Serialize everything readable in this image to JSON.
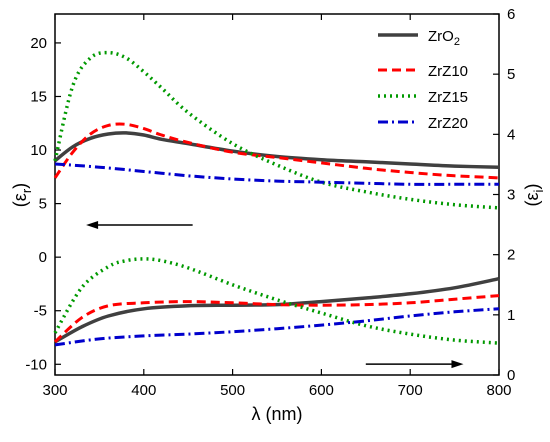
{
  "chart_data": {
    "type": "line",
    "xlabel": "λ (nm)",
    "ylabel_left_main": "(ε",
    "ylabel_left_sub": "r",
    "ylabel_left_tail": ")",
    "ylabel_right_main": "(ε",
    "ylabel_right_sub": "i",
    "ylabel_right_tail": ")",
    "xlim": [
      300,
      800
    ],
    "ylim_left": [
      -11,
      22.7
    ],
    "ylim_right": [
      0,
      6
    ],
    "x_ticks": [
      300,
      400,
      500,
      600,
      700,
      800
    ],
    "y_left_ticks": [
      -10,
      -5,
      0,
      5,
      10,
      15,
      20
    ],
    "y_right_ticks": [
      0,
      1,
      2,
      3,
      4,
      5,
      6
    ],
    "legend_position": "top-right",
    "series_styles": [
      {
        "color": "#404040",
        "dash": "",
        "width": 3.5
      },
      {
        "color": "#ff0000",
        "dash": "9,5",
        "width": 3
      },
      {
        "color": "#009900",
        "dash": "2,4",
        "width": 3.5
      },
      {
        "color": "#0000cc",
        "dash": "10,4,2,4",
        "width": 3
      }
    ],
    "legend": [
      {
        "name": "ZrO",
        "sub": "2"
      },
      {
        "name": "ZrZ10",
        "sub": ""
      },
      {
        "name": "ZrZ15",
        "sub": ""
      },
      {
        "name": "ZrZ20",
        "sub": ""
      }
    ],
    "series": [
      {
        "name": "ZrO2 (εr)",
        "axis": "left",
        "style": 0,
        "x": [
          300,
          320,
          340,
          360,
          380,
          400,
          420,
          450,
          500,
          550,
          600,
          650,
          700,
          750,
          800
        ],
        "y": [
          9.0,
          10.3,
          11.1,
          11.5,
          11.6,
          11.4,
          11.0,
          10.6,
          9.9,
          9.4,
          9.1,
          8.9,
          8.7,
          8.5,
          8.4
        ]
      },
      {
        "name": "ZrZ10 (εr)",
        "axis": "left",
        "style": 1,
        "x": [
          300,
          320,
          340,
          360,
          380,
          400,
          420,
          450,
          500,
          550,
          600,
          650,
          700,
          750,
          800
        ],
        "y": [
          7.4,
          9.8,
          11.5,
          12.3,
          12.4,
          12.0,
          11.4,
          10.7,
          9.8,
          9.3,
          8.8,
          8.3,
          7.9,
          7.6,
          7.4
        ]
      },
      {
        "name": "ZrZ15 (εr)",
        "axis": "left",
        "style": 2,
        "x": [
          300,
          320,
          340,
          360,
          380,
          400,
          420,
          450,
          500,
          550,
          600,
          650,
          700,
          750,
          800
        ],
        "y": [
          9.0,
          16.0,
          18.6,
          19.1,
          18.6,
          17.3,
          15.8,
          13.5,
          10.6,
          8.6,
          7.0,
          6.1,
          5.4,
          4.9,
          4.6
        ]
      },
      {
        "name": "ZrZ20 (εr)",
        "axis": "left",
        "style": 3,
        "x": [
          300,
          350,
          400,
          450,
          500,
          550,
          600,
          650,
          700,
          750,
          800
        ],
        "y": [
          8.7,
          8.4,
          8.0,
          7.6,
          7.3,
          7.1,
          7.0,
          6.9,
          6.8,
          6.8,
          6.8
        ]
      },
      {
        "name": "ZrO2 (εi)",
        "axis": "right",
        "style": 0,
        "x": [
          300,
          330,
          360,
          400,
          450,
          500,
          550,
          600,
          650,
          700,
          750,
          800
        ],
        "y": [
          0.55,
          0.8,
          0.98,
          1.1,
          1.15,
          1.16,
          1.17,
          1.22,
          1.28,
          1.35,
          1.45,
          1.6
        ]
      },
      {
        "name": "ZrZ10 (εi)",
        "axis": "right",
        "style": 1,
        "x": [
          300,
          330,
          360,
          400,
          450,
          500,
          550,
          600,
          650,
          700,
          750,
          800
        ],
        "y": [
          0.55,
          0.95,
          1.15,
          1.2,
          1.22,
          1.2,
          1.17,
          1.16,
          1.17,
          1.2,
          1.26,
          1.32
        ]
      },
      {
        "name": "ZrZ15 (εi)",
        "axis": "right",
        "style": 2,
        "x": [
          300,
          330,
          360,
          380,
          400,
          420,
          450,
          500,
          550,
          600,
          650,
          700,
          750,
          800
        ],
        "y": [
          0.7,
          1.45,
          1.8,
          1.9,
          1.93,
          1.9,
          1.78,
          1.5,
          1.25,
          1.03,
          0.82,
          0.68,
          0.58,
          0.53
        ]
      },
      {
        "name": "ZrZ20 (εi)",
        "axis": "right",
        "style": 3,
        "x": [
          300,
          350,
          400,
          450,
          500,
          550,
          600,
          650,
          700,
          750,
          800
        ],
        "y": [
          0.5,
          0.6,
          0.65,
          0.68,
          0.72,
          0.77,
          0.83,
          0.9,
          0.98,
          1.05,
          1.1
        ]
      }
    ],
    "arrows": [
      {
        "direction": "left",
        "axis": "left",
        "x_from": 455,
        "x_to": 335,
        "y": 3.0
      },
      {
        "direction": "right",
        "axis": "right",
        "x_from": 650,
        "x_to": 760,
        "y": 0.18
      }
    ]
  }
}
